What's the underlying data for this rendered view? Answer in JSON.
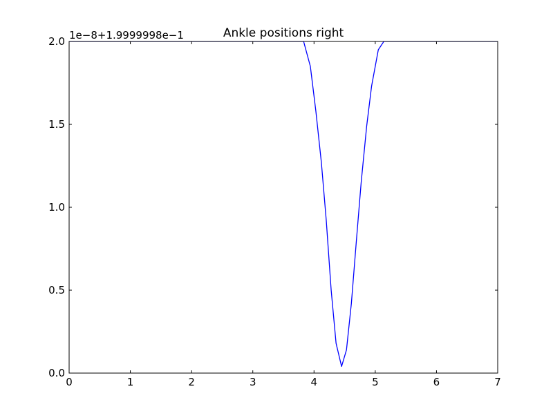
{
  "chart_data": {
    "type": "line",
    "title": "Ankle positions right",
    "offset_label": "1e−8+1.9999998e−1",
    "xlabel": "",
    "ylabel": "",
    "xlim": [
      0,
      7
    ],
    "ylim": [
      0.0,
      2.0
    ],
    "x_ticks": [
      0,
      1,
      2,
      3,
      4,
      5,
      6,
      7
    ],
    "x_tick_labels": [
      "0",
      "1",
      "2",
      "3",
      "4",
      "5",
      "6",
      "7"
    ],
    "y_ticks": [
      0.0,
      0.5,
      1.0,
      1.5,
      2.0
    ],
    "y_tick_labels": [
      "0.0",
      "0.5",
      "1.0",
      "1.5",
      "2.0"
    ],
    "grid": false,
    "series": [
      {
        "color": "#0000ff",
        "x": [
          0,
          3.83,
          3.94,
          4.03,
          4.12,
          4.2,
          4.28,
          4.36,
          4.45,
          4.53,
          4.61,
          4.69,
          4.77,
          4.86,
          4.94,
          5.05,
          5.14,
          7
        ],
        "y": [
          2.0,
          2.0,
          1.85,
          1.58,
          1.27,
          0.92,
          0.5,
          0.18,
          0.04,
          0.14,
          0.42,
          0.79,
          1.15,
          1.49,
          1.73,
          1.95,
          2.0,
          2.0
        ]
      }
    ]
  }
}
